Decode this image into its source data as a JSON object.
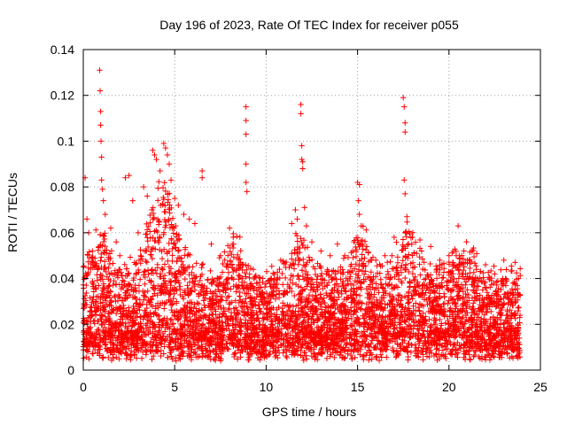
{
  "chart_data": {
    "type": "scatter",
    "title": "Day 196 of 2023, Rate Of TEC Index for receiver p055",
    "xlabel": "GPS time / hours",
    "ylabel": "ROTI / TECUs",
    "xlim": [
      0,
      25
    ],
    "ylim": [
      0,
      0.14
    ],
    "xticks": [
      0,
      5,
      10,
      15,
      20,
      25
    ],
    "xtick_labels": [
      "0",
      "5",
      "10",
      "15",
      "20",
      "25"
    ],
    "yticks": [
      0,
      0.02,
      0.04,
      0.06,
      0.08,
      0.1,
      0.12,
      0.14
    ],
    "ytick_labels": [
      "0",
      "0.02",
      "0.04",
      "0.06",
      "0.08",
      "0.1",
      "0.12",
      "0.14"
    ],
    "grid": true,
    "marker": "+",
    "color": "#ff0000",
    "series": [
      {
        "points": [
          [
            0.1,
            0.084
          ],
          [
            0.2,
            0.066
          ],
          [
            0.3,
            0.06
          ],
          [
            0.5,
            0.052
          ],
          [
            0.6,
            0.045
          ],
          [
            0.9,
            0.131
          ],
          [
            0.92,
            0.122
          ],
          [
            0.95,
            0.113
          ],
          [
            0.95,
            0.107
          ],
          [
            0.97,
            0.1
          ],
          [
            1.0,
            0.093
          ],
          [
            1.0,
            0.083
          ],
          [
            1.05,
            0.079
          ],
          [
            1.1,
            0.074
          ],
          [
            1.2,
            0.068
          ],
          [
            1.5,
            0.062
          ],
          [
            1.8,
            0.056
          ],
          [
            2.0,
            0.05
          ],
          [
            2.3,
            0.084
          ],
          [
            2.5,
            0.085
          ],
          [
            2.7,
            0.074
          ],
          [
            3.0,
            0.06
          ],
          [
            3.3,
            0.08
          ],
          [
            3.5,
            0.076
          ],
          [
            3.8,
            0.096
          ],
          [
            3.9,
            0.094
          ],
          [
            4.0,
            0.092
          ],
          [
            4.2,
            0.087
          ],
          [
            4.4,
            0.099
          ],
          [
            4.5,
            0.097
          ],
          [
            4.6,
            0.094
          ],
          [
            4.7,
            0.09
          ],
          [
            4.8,
            0.083
          ],
          [
            5.0,
            0.075
          ],
          [
            5.2,
            0.072
          ],
          [
            5.5,
            0.068
          ],
          [
            5.8,
            0.066
          ],
          [
            6.1,
            0.064
          ],
          [
            6.5,
            0.087
          ],
          [
            6.5,
            0.084
          ],
          [
            7.0,
            0.055
          ],
          [
            7.5,
            0.05
          ],
          [
            8.0,
            0.062
          ],
          [
            8.2,
            0.058
          ],
          [
            8.5,
            0.046
          ],
          [
            8.9,
            0.115
          ],
          [
            8.9,
            0.109
          ],
          [
            8.9,
            0.103
          ],
          [
            8.9,
            0.09
          ],
          [
            8.9,
            0.082
          ],
          [
            8.95,
            0.078
          ],
          [
            9.3,
            0.044
          ],
          [
            9.7,
            0.036
          ],
          [
            10.2,
            0.038
          ],
          [
            10.8,
            0.048
          ],
          [
            11.4,
            0.064
          ],
          [
            11.6,
            0.07
          ],
          [
            11.7,
            0.066
          ],
          [
            11.9,
            0.116
          ],
          [
            11.9,
            0.112
          ],
          [
            11.95,
            0.098
          ],
          [
            11.95,
            0.092
          ],
          [
            12.0,
            0.091
          ],
          [
            12.0,
            0.088
          ],
          [
            12.1,
            0.071
          ],
          [
            12.2,
            0.063
          ],
          [
            12.5,
            0.056
          ],
          [
            13.0,
            0.052
          ],
          [
            13.5,
            0.05
          ],
          [
            13.9,
            0.055
          ],
          [
            14.3,
            0.05
          ],
          [
            14.8,
            0.056
          ],
          [
            15.0,
            0.082
          ],
          [
            15.1,
            0.081
          ],
          [
            15.05,
            0.074
          ],
          [
            15.1,
            0.068
          ],
          [
            15.2,
            0.063
          ],
          [
            15.5,
            0.054
          ],
          [
            16.0,
            0.048
          ],
          [
            16.5,
            0.05
          ],
          [
            17.0,
            0.058
          ],
          [
            17.5,
            0.119
          ],
          [
            17.55,
            0.115
          ],
          [
            17.6,
            0.108
          ],
          [
            17.6,
            0.104
          ],
          [
            17.55,
            0.083
          ],
          [
            17.6,
            0.077
          ],
          [
            17.7,
            0.067
          ],
          [
            18.0,
            0.058
          ],
          [
            18.5,
            0.052
          ],
          [
            19.0,
            0.054
          ],
          [
            19.5,
            0.048
          ],
          [
            20.0,
            0.05
          ],
          [
            20.5,
            0.063
          ],
          [
            21.0,
            0.048
          ],
          [
            21.5,
            0.044
          ],
          [
            22.0,
            0.046
          ],
          [
            22.5,
            0.042
          ],
          [
            23.0,
            0.048
          ],
          [
            23.5,
            0.038
          ],
          [
            23.8,
            0.04
          ]
        ]
      }
    ]
  }
}
